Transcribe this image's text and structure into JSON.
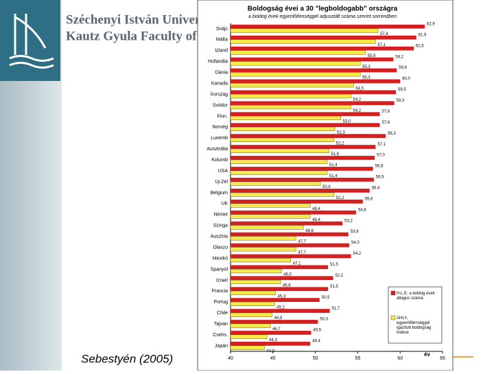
{
  "header": {
    "university": "Széchenyi István Univer",
    "faculty": "Kautz Gyula Faculty of"
  },
  "caption": "Sebestyén (2005)",
  "chart_data": {
    "type": "hbar",
    "title": "Boldogság évei a 30 \"legboldogabb\" országra",
    "subtitle": "a boldog évek egyenlőtlenséggel adjusztált száma szerint sorrendben",
    "x_label": "év",
    "categories": [
      "Svájc",
      "Málta",
      "Izland",
      "Hollandia",
      "Dánia",
      "Kanada",
      "Írország",
      "Svédor",
      "Finn.",
      "Norvég",
      "Luxemb",
      "Ausztrália",
      "Kolumb",
      "USA",
      "Új-Zél",
      "Belgium",
      "UK",
      "Német",
      "Szinga",
      "Ausztria",
      "Olaszo",
      "Mexikó",
      "Spanyol",
      "Izrael",
      "Francia",
      "Portug",
      "Chile",
      "Tajvan",
      "Csehs.",
      "Japán"
    ],
    "series": [
      {
        "name": "H.L.E. a boldog évek átlagos száma",
        "color": "#d42020",
        "values": [
          62.9,
          61.9,
          61.6,
          59.2,
          59.6,
          60.0,
          59.5,
          59.3,
          57.6,
          57.6,
          58.3,
          57.1,
          57.0,
          56.8,
          56.9,
          56.4,
          55.6,
          54.8,
          53.2,
          53.9,
          54.0,
          54.2,
          51.5,
          52.1,
          51.5,
          50.5,
          51.7,
          50.3,
          49.5,
          49.4
        ],
        "value_labels": [
          "62,9",
          "61,9",
          "61,6",
          "59,2",
          "59,6",
          "60,0",
          "59,5",
          "59,3",
          "57,6",
          "57,6",
          "58,3",
          "57,1",
          "57,0",
          "56,8",
          "56,9",
          "56,4",
          "55,6",
          "54,8",
          "53,2",
          "53,9",
          "54,0",
          "54,2",
          "51,5",
          "52,1",
          "51,5",
          "50,5",
          "51,7",
          "50,3",
          "49,5",
          "49,4"
        ]
      },
      {
        "name": "AHLY, egyenlőtlenséggel igazított boldogság indexe",
        "color": "#f5ea4a",
        "values": [
          57.4,
          57.1,
          55.9,
          55.3,
          55.3,
          54.5,
          54.2,
          54.2,
          53.0,
          52.3,
          52.2,
          51.6,
          51.4,
          51.4,
          50.6,
          52.2,
          49.4,
          49.4,
          48.6,
          47.7,
          47.7,
          47.1,
          46.0,
          45.9,
          45.3,
          45.2,
          44.9,
          44.7,
          44.3,
          44.0
        ],
        "value_labels": [
          "57,4",
          "57,1",
          "55,9",
          "55,3",
          "55,3",
          "54,5",
          "54,2",
          "54,2",
          "53,0",
          "52,3",
          "52,2",
          "51,6",
          "51,4",
          "51,4",
          "50,6",
          "52,2",
          "49,4",
          "49,4",
          "48,6",
          "47,7",
          "47,7",
          "47,1",
          "46,0",
          "45,9",
          "45,3",
          "45,2",
          "44,9",
          "44,7",
          "44,3",
          "44,0"
        ]
      }
    ],
    "xlim": [
      40,
      65
    ],
    "xticks": [
      40,
      45,
      50,
      55,
      60,
      65
    ]
  }
}
